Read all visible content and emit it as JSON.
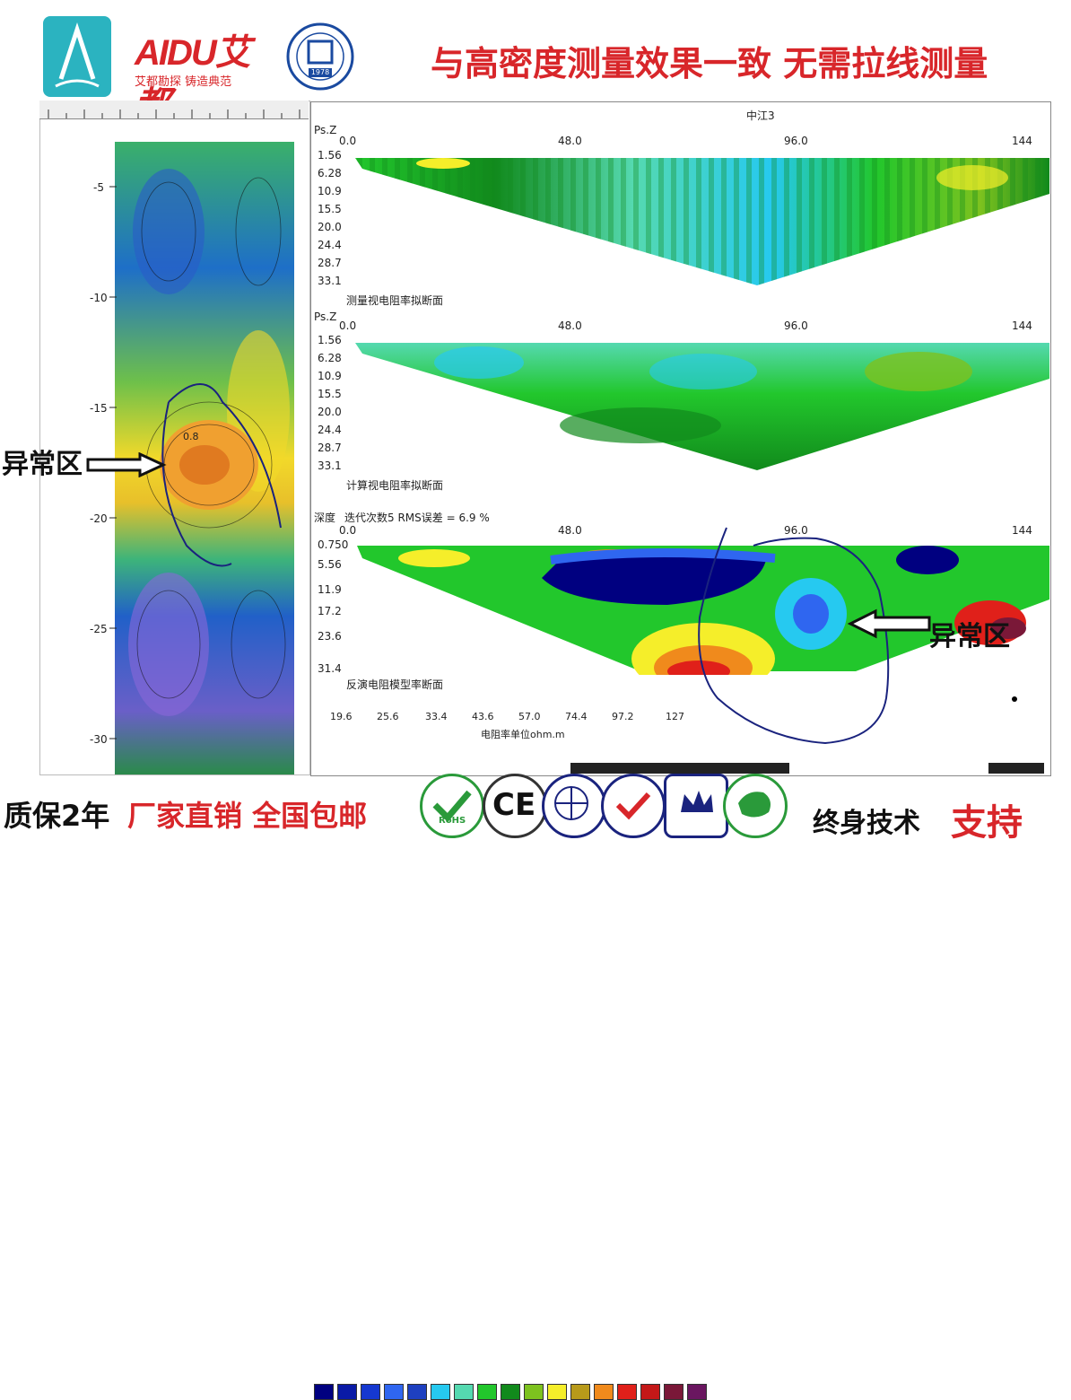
{
  "header": {
    "brand_name": "AIDU艾都",
    "brand_slogan": "艾都勘探 铸造典范",
    "badge_year": "1978",
    "headline": "与高密度测量效果一致   无需拉线测量"
  },
  "left_section": {
    "anomaly_label": "异常区",
    "depth_ticks": [
      "-5",
      "-10",
      "-15",
      "-20",
      "-25",
      "-30"
    ],
    "contour_label": "0.8"
  },
  "right_section": {
    "line_name": "中江3",
    "axis_label_psz": "Ps.Z",
    "axis_label_depth": "深度",
    "x_ticks": [
      "0.0",
      "48.0",
      "96.0",
      "144"
    ],
    "panel1": {
      "y_ticks": [
        "1.56",
        "6.28",
        "10.9",
        "15.5",
        "20.0",
        "24.4",
        "28.7",
        "33.1"
      ],
      "caption": "测量视电阻率拟断面"
    },
    "panel2": {
      "y_ticks": [
        "1.56",
        "6.28",
        "10.9",
        "15.5",
        "20.0",
        "24.4",
        "28.7",
        "33.1"
      ],
      "caption": "计算视电阻率拟断面"
    },
    "panel3": {
      "iteration_text": "迭代次数5 RMS误差 = 6.9 %",
      "y_ticks": [
        "0.750",
        "5.56",
        "11.9",
        "17.2",
        "23.6",
        "31.4"
      ],
      "caption": "反演电阻模型率断面",
      "anomaly_label": "异常区"
    },
    "legend": {
      "values": [
        "19.6",
        "25.6",
        "33.4",
        "43.6",
        "57.0",
        "74.4",
        "97.2",
        "127"
      ],
      "unit_label": "电阻率单位ohm.m",
      "colors": [
        "#000080",
        "#0a1aa6",
        "#1538d0",
        "#2f66f0",
        "#26c9f0",
        "#55d9b0",
        "#22c72c",
        "#118a1c",
        "#7dc21f",
        "#f5ee2a",
        "#b89a1a",
        "#f08a1c",
        "#e0201a",
        "#c41818",
        "#7a1838",
        "#6a1660"
      ]
    }
  },
  "footer": {
    "warranty": "质保2年",
    "sales": "厂家直销  全国包邮",
    "support_prefix": "终身技术",
    "support_suffix": "支持",
    "cert_labels": [
      "RoHS",
      "CE"
    ]
  }
}
